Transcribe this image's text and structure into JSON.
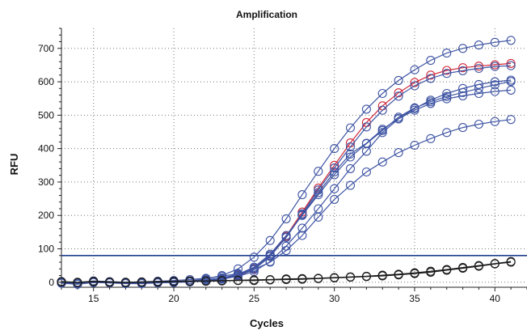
{
  "chart_data": {
    "type": "line",
    "title": "Amplification",
    "xlabel": "Cycles",
    "ylabel": "RFU",
    "xlim": [
      13,
      42
    ],
    "ylim": [
      -15,
      760
    ],
    "xticks": [
      15,
      20,
      25,
      30,
      35,
      40
    ],
    "yticks": [
      0,
      100,
      200,
      300,
      400,
      500,
      600,
      700
    ],
    "grid": true,
    "grid_style": "dotted",
    "marker": "open-circle",
    "threshold": {
      "value": 80,
      "color": "#1f3f8f"
    },
    "x": [
      13,
      14,
      15,
      16,
      17,
      18,
      19,
      20,
      21,
      22,
      23,
      24,
      25,
      26,
      27,
      28,
      29,
      30,
      31,
      32,
      33,
      34,
      35,
      36,
      37,
      38,
      39,
      40,
      41
    ],
    "series": [
      {
        "color": "#3e54a3",
        "values": [
          2,
          -3,
          3,
          0,
          -2,
          -1,
          0,
          2,
          4,
          10,
          20,
          40,
          75,
          125,
          190,
          262,
          332,
          400,
          462,
          518,
          565,
          604,
          636,
          664,
          686,
          700,
          710,
          718,
          724
        ]
      },
      {
        "color": "#d1283a",
        "values": [
          -2,
          -5,
          0,
          -1,
          -3,
          -3,
          -1,
          0,
          2,
          5,
          10,
          20,
          40,
          80,
          138,
          210,
          282,
          350,
          417,
          478,
          528,
          567,
          598,
          620,
          634,
          642,
          647,
          651,
          655
        ]
      },
      {
        "color": "#3e54a3",
        "values": [
          -3,
          -6,
          -1,
          -2,
          -4,
          -4,
          -2,
          -1,
          1,
          4,
          9,
          19,
          38,
          77,
          134,
          205,
          276,
          342,
          405,
          465,
          515,
          557,
          588,
          610,
          625,
          633,
          640,
          646,
          648
        ]
      },
      {
        "color": "#3e54a3",
        "values": [
          0,
          -4,
          1,
          -1,
          -2,
          -2,
          0,
          1,
          3,
          6,
          12,
          22,
          42,
          80,
          135,
          202,
          268,
          330,
          384,
          416,
          458,
          490,
          520,
          545,
          565,
          580,
          592,
          600,
          605
        ]
      },
      {
        "color": "#3e54a3",
        "values": [
          1,
          -3,
          2,
          0,
          -1,
          -1,
          1,
          2,
          4,
          7,
          13,
          24,
          45,
          84,
          140,
          200,
          262,
          322,
          375,
          415,
          454,
          494,
          522,
          540,
          556,
          568,
          580,
          591,
          601
        ]
      },
      {
        "color": "#3e54a3",
        "values": [
          -1,
          -5,
          1,
          -1,
          -3,
          -2,
          0,
          1,
          3,
          5,
          10,
          18,
          32,
          62,
          108,
          162,
          220,
          280,
          340,
          392,
          448,
          489,
          515,
          535,
          549,
          558,
          565,
          571,
          575
        ]
      },
      {
        "color": "#3e54a3",
        "values": [
          2,
          -2,
          4,
          2,
          0,
          1,
          3,
          5,
          8,
          12,
          18,
          26,
          38,
          60,
          95,
          140,
          195,
          248,
          290,
          330,
          360,
          388,
          410,
          430,
          448,
          463,
          473,
          481,
          487
        ]
      },
      {
        "color": "#1a1a1a",
        "values": [
          2,
          0,
          3,
          1,
          0,
          1,
          2,
          3,
          4,
          4,
          5,
          6,
          7,
          8,
          10,
          11,
          12,
          14,
          16,
          18,
          21,
          24,
          28,
          33,
          38,
          44,
          50,
          56,
          62
        ]
      },
      {
        "color": "#1a1a1a",
        "values": [
          1,
          -1,
          2,
          0,
          -1,
          0,
          1,
          2,
          3,
          3,
          4,
          5,
          5,
          7,
          8,
          9,
          11,
          13,
          15,
          17,
          19,
          22,
          26,
          30,
          36,
          42,
          48,
          55,
          60
        ]
      }
    ]
  }
}
